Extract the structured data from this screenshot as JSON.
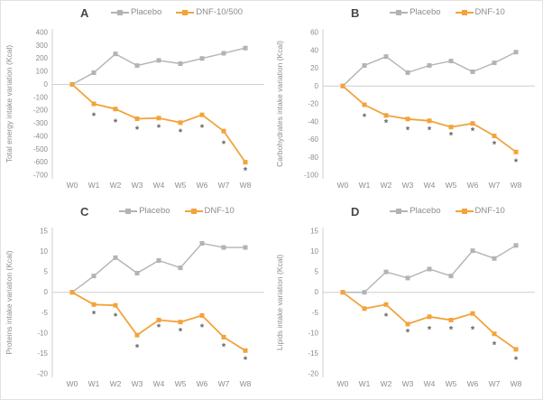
{
  "accent_colors": {
    "placebo": "#b3b3b3",
    "treatment": "#f2a33a"
  },
  "chart_data": [
    {
      "type": "line",
      "panel": "A",
      "ylabel": "Total energy intake variation (Kcal)",
      "categories": [
        "W0",
        "W1",
        "W2",
        "W3",
        "W4",
        "W5",
        "W6",
        "W7",
        "W8"
      ],
      "ylim": [
        -700,
        400
      ],
      "ytick_step": 100,
      "grid": false,
      "legend_position": "top",
      "series": [
        {
          "name": "Placebo",
          "color": "#b3b3b3",
          "values": [
            0,
            90,
            235,
            145,
            185,
            160,
            200,
            240,
            280
          ]
        },
        {
          "name": "DNF-10/500",
          "color": "#f2a33a",
          "values": [
            0,
            -150,
            -190,
            -265,
            -260,
            -295,
            -235,
            -360,
            -600
          ]
        }
      ],
      "significance": {
        "symbol": "*",
        "color": "#666666",
        "values": [
          null,
          -240,
          -290,
          -345,
          -330,
          -365,
          -330,
          -455,
          -660
        ]
      }
    },
    {
      "type": "line",
      "panel": "B",
      "ylabel": "Carbohydrates intake variation (Kcal)",
      "categories": [
        "W0",
        "W1",
        "W2",
        "W3",
        "W4",
        "W5",
        "W6",
        "W7",
        "W8"
      ],
      "ylim": [
        -100,
        60
      ],
      "ytick_step": 20,
      "grid": false,
      "legend_position": "top",
      "series": [
        {
          "name": "Placebo",
          "color": "#b3b3b3",
          "values": [
            0,
            23,
            33,
            15,
            23,
            28,
            16,
            26,
            38
          ]
        },
        {
          "name": "DNF-10",
          "color": "#f2a33a",
          "values": [
            0,
            -21,
            -33,
            -37,
            -39,
            -46,
            -42,
            -56,
            -74
          ]
        }
      ],
      "significance": {
        "symbol": "*",
        "color": "#666666",
        "values": [
          null,
          -34,
          -41,
          -49,
          -49,
          -55,
          -50,
          -65,
          -85
        ]
      }
    },
    {
      "type": "line",
      "panel": "C",
      "ylabel": "Proteins intake variation (Kcal)",
      "categories": [
        "W0",
        "W1",
        "W2",
        "W3",
        "W4",
        "W5",
        "W6",
        "W7",
        "W8"
      ],
      "ylim": [
        -20,
        15
      ],
      "ytick_step": 5,
      "grid": false,
      "legend_position": "top",
      "series": [
        {
          "name": "Placebo",
          "color": "#b3b3b3",
          "values": [
            0,
            4,
            8.5,
            4.7,
            7.8,
            6,
            12,
            11,
            11
          ]
        },
        {
          "name": "DNF-10",
          "color": "#f2a33a",
          "values": [
            0,
            -3,
            -3.2,
            -10.5,
            -6.8,
            -7.3,
            -5.7,
            -11,
            -14.3
          ]
        }
      ],
      "significance": {
        "symbol": "*",
        "color": "#666666",
        "values": [
          null,
          -5.3,
          -5.8,
          -13.5,
          -8.5,
          -9.5,
          -8.5,
          -13.2,
          -16.5
        ]
      }
    },
    {
      "type": "line",
      "panel": "D",
      "ylabel": "Lipids intake variation (Kcal)",
      "categories": [
        "W0",
        "W1",
        "W2",
        "W3",
        "W4",
        "W5",
        "W6",
        "W7",
        "W8"
      ],
      "ylim": [
        -20,
        15
      ],
      "ytick_step": 5,
      "grid": false,
      "legend_position": "top",
      "series": [
        {
          "name": "Placebo",
          "color": "#b3b3b3",
          "values": [
            0,
            0,
            5,
            3.5,
            5.7,
            4,
            10.2,
            8.3,
            11.5
          ]
        },
        {
          "name": "DNF-10",
          "color": "#f2a33a",
          "values": [
            0,
            -4,
            -3,
            -7.8,
            -6,
            -6.8,
            -5.2,
            -10.2,
            -14
          ]
        }
      ],
      "significance": {
        "symbol": "*",
        "color": "#666666",
        "values": [
          null,
          null,
          -5.8,
          -9.7,
          -9,
          -9,
          -9,
          -12.8,
          -16.5
        ]
      }
    }
  ]
}
